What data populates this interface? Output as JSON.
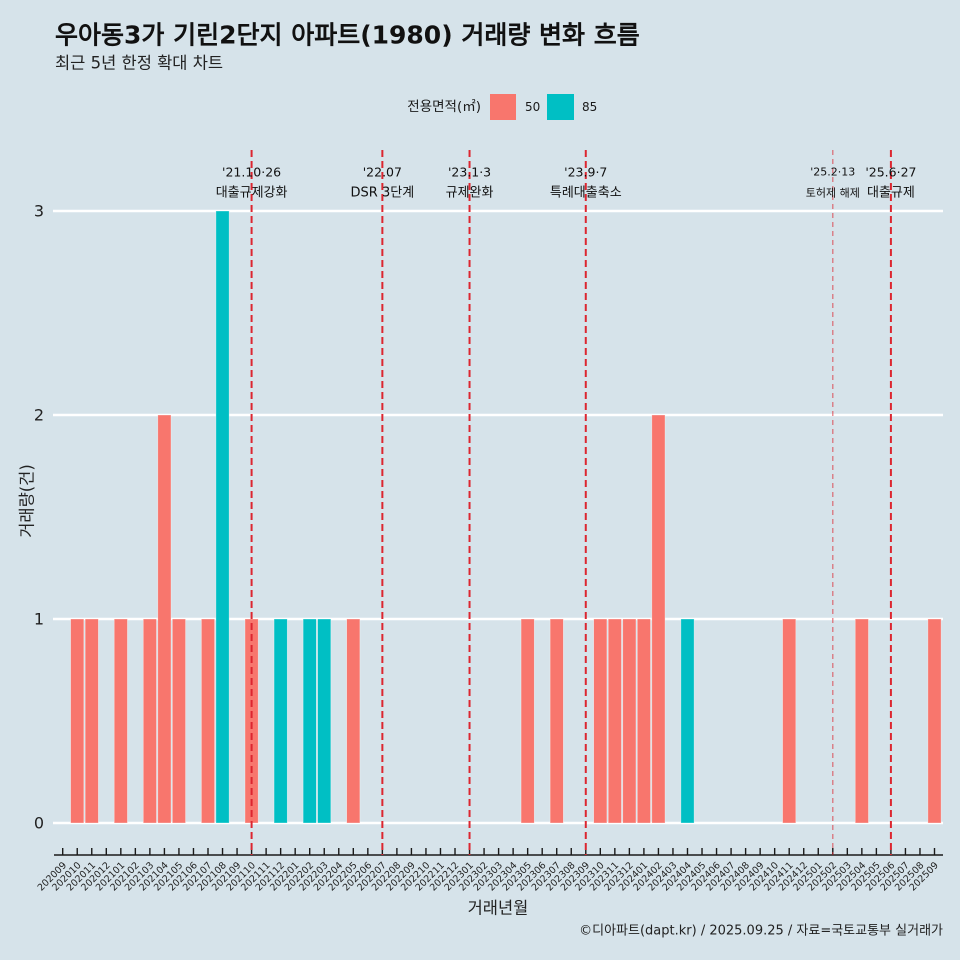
{
  "caption": "©디아파트(dapt.kr) / 2025.09.25 / 자료=국토교통부 실거래가",
  "colors": {
    "background": "#d6e3ea",
    "grid": "#ffffff",
    "axis": "#1a1a1a",
    "event_line": "#dc2630"
  },
  "chart_data": {
    "type": "bar",
    "title": "우아동3가 기린2단지 아파트(1980) 거래량 변화 흐름",
    "subtitle": "최근 5년 한정 확대 차트",
    "xlabel": "거래년월",
    "ylabel": "거래량(건)",
    "ylim": [
      0,
      3
    ],
    "yticks": [
      0,
      1,
      2,
      3
    ],
    "ytick_labels": [
      "0",
      "1",
      "2",
      "3"
    ],
    "grid": true,
    "legend_position": "top",
    "legend_title": "전용면적(㎡)",
    "categories": [
      "202009",
      "202010",
      "202011",
      "202012",
      "202101",
      "202102",
      "202103",
      "202104",
      "202105",
      "202106",
      "202107",
      "202108",
      "202109",
      "202110",
      "202111",
      "202112",
      "202201",
      "202202",
      "202203",
      "202204",
      "202205",
      "202206",
      "202207",
      "202208",
      "202209",
      "202210",
      "202211",
      "202212",
      "202301",
      "202302",
      "202303",
      "202304",
      "202305",
      "202306",
      "202307",
      "202308",
      "202309",
      "202310",
      "202311",
      "202312",
      "202401",
      "202402",
      "202403",
      "202404",
      "202405",
      "202406",
      "202407",
      "202408",
      "202409",
      "202410",
      "202411",
      "202412",
      "202501",
      "202502",
      "202503",
      "202504",
      "202505",
      "202506",
      "202507",
      "202508",
      "202509"
    ],
    "series": [
      {
        "name": "50",
        "color": "#F8766D",
        "values": [
          0,
          1,
          1,
          0,
          1,
          0,
          1,
          2,
          1,
          0,
          1,
          0,
          0,
          1,
          0,
          0,
          0,
          0,
          0,
          0,
          1,
          0,
          0,
          0,
          0,
          0,
          0,
          0,
          0,
          0,
          0,
          0,
          1,
          0,
          1,
          0,
          0,
          1,
          1,
          1,
          1,
          2,
          0,
          0,
          0,
          0,
          0,
          0,
          0,
          0,
          1,
          0,
          0,
          0,
          0,
          1,
          0,
          0,
          0,
          0,
          1
        ]
      },
      {
        "name": "85",
        "color": "#00BFC4",
        "values": [
          0,
          0,
          0,
          0,
          0,
          0,
          0,
          0,
          0,
          0,
          0,
          3,
          0,
          0,
          0,
          1,
          0,
          1,
          1,
          0,
          0,
          0,
          0,
          0,
          0,
          0,
          0,
          0,
          0,
          0,
          0,
          0,
          0,
          0,
          0,
          0,
          0,
          0,
          0,
          0,
          0,
          0,
          0,
          1,
          0,
          0,
          0,
          0,
          0,
          0,
          0,
          0,
          0,
          0,
          0,
          0,
          0,
          0,
          0,
          0,
          0
        ]
      }
    ],
    "events": [
      {
        "x": "202110",
        "date": "'21.10·26",
        "label": "대출규제강화",
        "style": "major"
      },
      {
        "x": "202207",
        "date": "'22.07",
        "label": "DSR 3단계",
        "style": "major"
      },
      {
        "x": "202301",
        "date": "'23.1·3",
        "label": "규제완화",
        "style": "major"
      },
      {
        "x": "202309",
        "date": "'23.9·7",
        "label": "특례대출축소",
        "style": "major"
      },
      {
        "x": "202502",
        "date": "'25.2·13",
        "label": "토허제 해제",
        "style": "minor"
      },
      {
        "x": "202506",
        "date": "'25.6·27",
        "label": "대출규제",
        "style": "major"
      }
    ]
  }
}
